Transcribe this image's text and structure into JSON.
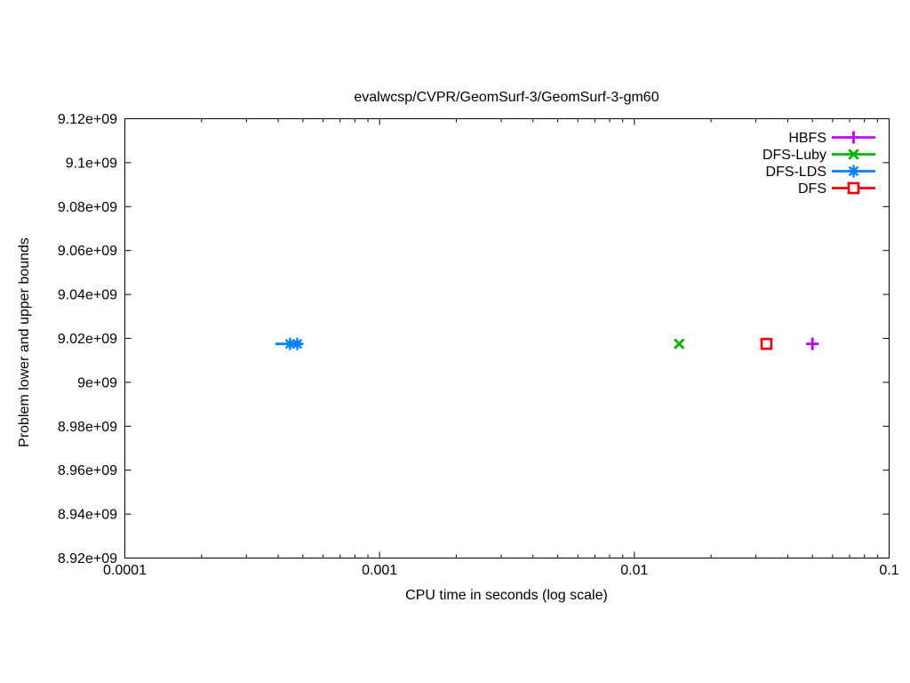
{
  "chart_data": {
    "type": "scatter",
    "title": "evalwcsp/CVPR/GeomSurf-3/GeomSurf-3-gm60",
    "xlabel": "CPU time in seconds (log scale)",
    "ylabel": "Problem lower and upper bounds",
    "x_scale": "log",
    "x_range": [
      0.0001,
      0.1
    ],
    "y_range": [
      8920000000,
      9120000000
    ],
    "grid": false,
    "legend_position": "top-right-inside",
    "x_ticks": [
      {
        "value": 0.0001,
        "label": "0.0001"
      },
      {
        "value": 0.001,
        "label": "0.001"
      },
      {
        "value": 0.01,
        "label": "0.01"
      },
      {
        "value": 0.1,
        "label": "0.1"
      }
    ],
    "y_ticks": [
      {
        "value": 9120000000,
        "label": "9.12e+09"
      },
      {
        "value": 9100000000,
        "label": "9.1e+09"
      },
      {
        "value": 9080000000,
        "label": "9.08e+09"
      },
      {
        "value": 9060000000,
        "label": "9.06e+09"
      },
      {
        "value": 9040000000,
        "label": "9.04e+09"
      },
      {
        "value": 9020000000,
        "label": "9.02e+09"
      },
      {
        "value": 9000000000,
        "label": "9e+09"
      },
      {
        "value": 8980000000,
        "label": "8.98e+09"
      },
      {
        "value": 8960000000,
        "label": "8.96e+09"
      },
      {
        "value": 8940000000,
        "label": "8.94e+09"
      },
      {
        "value": 8920000000,
        "label": "8.92e+09"
      }
    ],
    "series": [
      {
        "name": "HBFS",
        "color": "#bf00ff",
        "marker": "plus",
        "points": [
          [
            0.05,
            9017500000
          ]
        ]
      },
      {
        "name": "DFS-Luby",
        "color": "#00b400",
        "marker": "cross",
        "points": [
          [
            0.015,
            9017500000
          ]
        ]
      },
      {
        "name": "DFS-LDS",
        "color": "#0080ff",
        "marker": "asterisk",
        "points": [
          [
            0.000445,
            9017500000
          ],
          [
            0.000475,
            9017500000
          ]
        ],
        "line": [
          [
            0.00039,
            9017500000
          ],
          [
            0.0005,
            9017500000
          ]
        ]
      },
      {
        "name": "DFS",
        "color": "#f40000",
        "marker": "open-square",
        "points": [
          [
            0.033,
            9017500000
          ]
        ]
      }
    ]
  }
}
